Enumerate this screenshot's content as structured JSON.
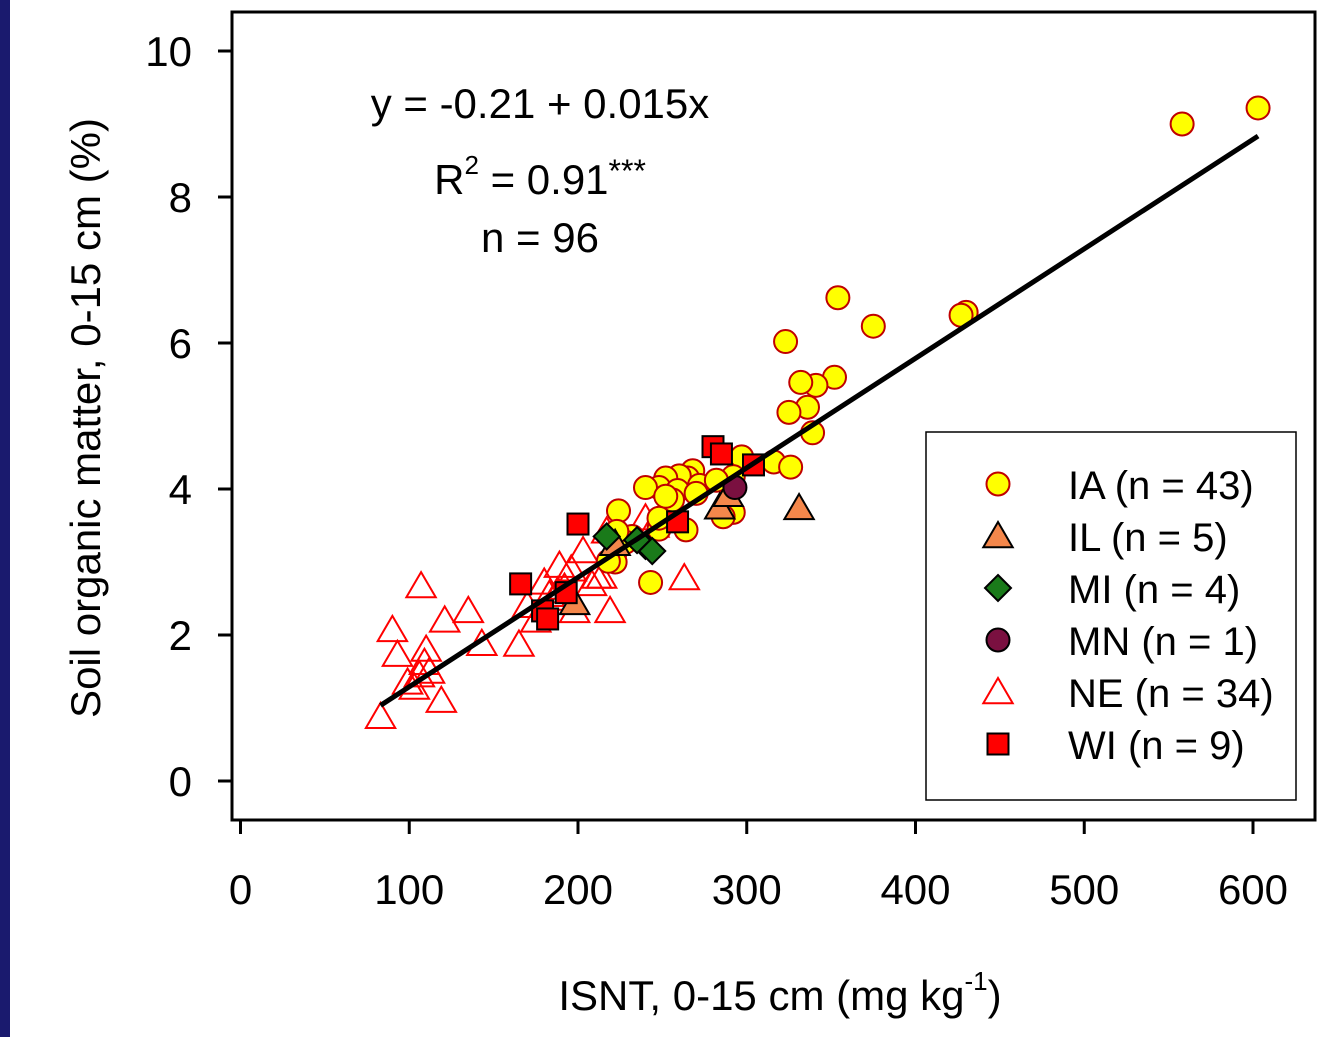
{
  "chart_data": {
    "type": "scatter",
    "xlabel": "ISNT, 0-15 cm (mg kg",
    "xlabel_sup": "-1",
    "xlabel_end": ")",
    "ylabel": "Soil organic matter, 0-15 cm (%)",
    "xlim": [
      0,
      640
    ],
    "ylim": [
      -0.3,
      10.5
    ],
    "x_ticks": [
      0,
      100,
      200,
      300,
      400,
      500,
      600
    ],
    "y_ticks": [
      0,
      2,
      4,
      6,
      8,
      10
    ],
    "grid": false,
    "legend_position": "bottom-right",
    "annotations": {
      "equation": "y = -0.21 + 0.015x",
      "r2_prefix": "R",
      "r2_sup": "2",
      "r2_value": " = 0.91",
      "r2_sig": "***",
      "n_label": "n = 96"
    },
    "regression": {
      "intercept": -0.21,
      "slope": 0.015,
      "x_range": [
        83,
        603
      ]
    },
    "series": [
      {
        "name": "IA (n = 43)",
        "marker": "circle",
        "color": "#ffff00",
        "points": [
          [
            603,
            9.22
          ],
          [
            558,
            9.0
          ],
          [
            430,
            6.42
          ],
          [
            427,
            6.38
          ],
          [
            375,
            6.23
          ],
          [
            354,
            6.62
          ],
          [
            323,
            6.02
          ],
          [
            352,
            5.53
          ],
          [
            341,
            5.42
          ],
          [
            332,
            5.46
          ],
          [
            336,
            5.12
          ],
          [
            325,
            5.05
          ],
          [
            339,
            4.77
          ],
          [
            316,
            4.37
          ],
          [
            326,
            4.3
          ],
          [
            297,
            4.44
          ],
          [
            292,
            4.17
          ],
          [
            268,
            4.25
          ],
          [
            265,
            4.15
          ],
          [
            260,
            4.18
          ],
          [
            252,
            4.15
          ],
          [
            248,
            4.02
          ],
          [
            259,
            3.98
          ],
          [
            272,
            4.05
          ],
          [
            270,
            3.94
          ],
          [
            256,
            3.85
          ],
          [
            240,
            4.02
          ],
          [
            252,
            3.9
          ],
          [
            224,
            3.7
          ],
          [
            292,
            3.68
          ],
          [
            286,
            3.62
          ],
          [
            264,
            3.44
          ],
          [
            248,
            3.45
          ],
          [
            232,
            3.35
          ],
          [
            228,
            3.27
          ],
          [
            223,
            3.42
          ],
          [
            222,
            3.13
          ],
          [
            220,
            3.04
          ],
          [
            222,
            3.0
          ],
          [
            218,
            3.01
          ],
          [
            243,
            2.72
          ],
          [
            248,
            3.6
          ],
          [
            282,
            4.12
          ]
        ]
      },
      {
        "name": "IL (n = 5)",
        "marker": "triangle",
        "color": "#f4874b",
        "points": [
          [
            331,
            3.74
          ],
          [
            284,
            3.75
          ],
          [
            289,
            3.92
          ],
          [
            198,
            2.44
          ],
          [
            222,
            3.25
          ]
        ]
      },
      {
        "name": "MI (n = 4)",
        "marker": "diamond",
        "color": "#1a7a1a",
        "points": [
          [
            217,
            3.35
          ],
          [
            240,
            3.22
          ],
          [
            235,
            3.3
          ],
          [
            244,
            3.15
          ]
        ]
      },
      {
        "name": "MN (n = 1)",
        "marker": "circle",
        "color": "#7a1040",
        "points": [
          [
            293,
            4.02
          ]
        ]
      },
      {
        "name": "NE (n = 34)",
        "marker": "triangle-open",
        "color": "#ff0000",
        "points": [
          [
            83,
            0.88
          ],
          [
            90,
            2.07
          ],
          [
            93,
            1.73
          ],
          [
            107,
            2.67
          ],
          [
            110,
            1.8
          ],
          [
            121,
            2.2
          ],
          [
            135,
            2.33
          ],
          [
            143,
            1.88
          ],
          [
            165,
            1.87
          ],
          [
            119,
            1.1
          ],
          [
            112,
            1.5
          ],
          [
            103,
            1.28
          ],
          [
            106,
            1.45
          ],
          [
            109,
            1.62
          ],
          [
            99,
            1.35
          ],
          [
            189,
            2.95
          ],
          [
            192,
            2.65
          ],
          [
            188,
            2.6
          ],
          [
            186,
            2.5
          ],
          [
            198,
            2.33
          ],
          [
            208,
            2.7
          ],
          [
            211,
            2.8
          ],
          [
            219,
            2.33
          ],
          [
            217,
            3.42
          ],
          [
            263,
            2.78
          ],
          [
            245,
            3.5
          ],
          [
            240,
            3.6
          ],
          [
            196,
            2.9
          ],
          [
            203,
            3.15
          ],
          [
            214,
            2.8
          ],
          [
            183,
            2.55
          ],
          [
            175,
            2.2
          ],
          [
            170,
            2.4
          ],
          [
            180,
            2.72
          ]
        ]
      },
      {
        "name": "WI (n = 9)",
        "marker": "square",
        "color": "#ff0000",
        "points": [
          [
            166,
            2.7
          ],
          [
            179,
            2.33
          ],
          [
            182,
            2.22
          ],
          [
            193,
            2.58
          ],
          [
            200,
            3.52
          ],
          [
            259,
            3.55
          ],
          [
            280,
            4.58
          ],
          [
            285,
            4.48
          ],
          [
            304,
            4.33
          ]
        ]
      }
    ]
  }
}
